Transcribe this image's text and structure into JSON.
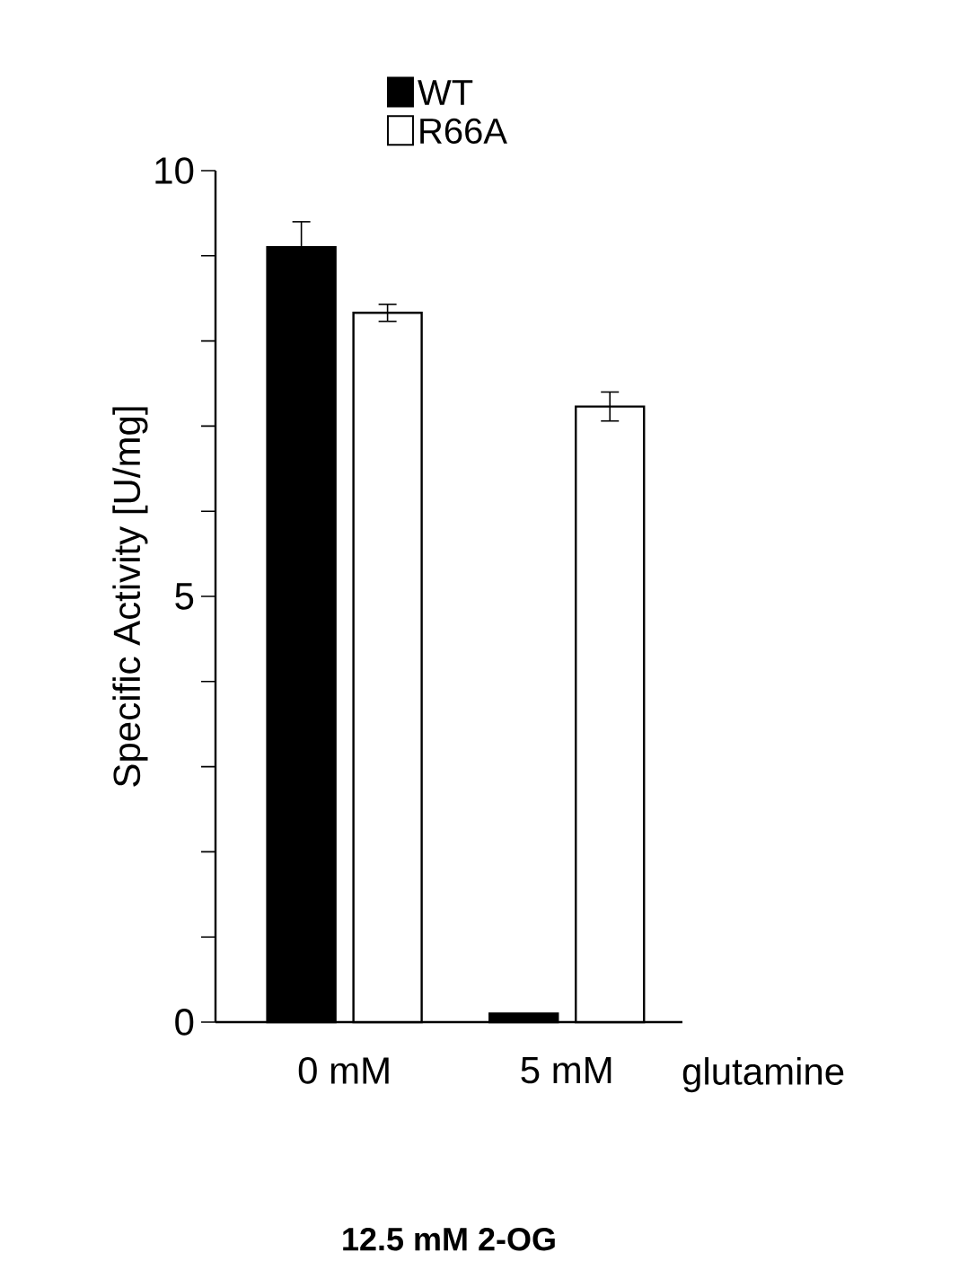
{
  "chart_data": {
    "type": "bar",
    "ylabel": "Specific Activity [U/mg]",
    "xlabel": "glutamine",
    "categories": [
      "0 mM",
      "5 mM"
    ],
    "series": [
      {
        "name": "WT",
        "color": "#000000",
        "values": [
          9.1,
          0.1
        ],
        "errors": [
          0.3,
          null
        ]
      },
      {
        "name": "R66A",
        "color": "#ffffff",
        "values": [
          8.33,
          7.23
        ],
        "errors": [
          0.1,
          0.17
        ]
      }
    ],
    "ylim": [
      0,
      10
    ],
    "yticks": [
      0,
      {
        "value": 1,
        "label": null
      },
      {
        "value": 2,
        "label": null
      },
      {
        "value": 3,
        "label": null
      },
      {
        "value": 4,
        "label": null
      },
      5,
      {
        "value": 6,
        "label": null
      },
      {
        "value": 7,
        "label": null
      },
      {
        "value": 8,
        "label": null
      },
      {
        "value": 9,
        "label": null
      },
      10
    ],
    "legend": "top",
    "annotations": [
      "12.5 mM 2-OG"
    ]
  }
}
